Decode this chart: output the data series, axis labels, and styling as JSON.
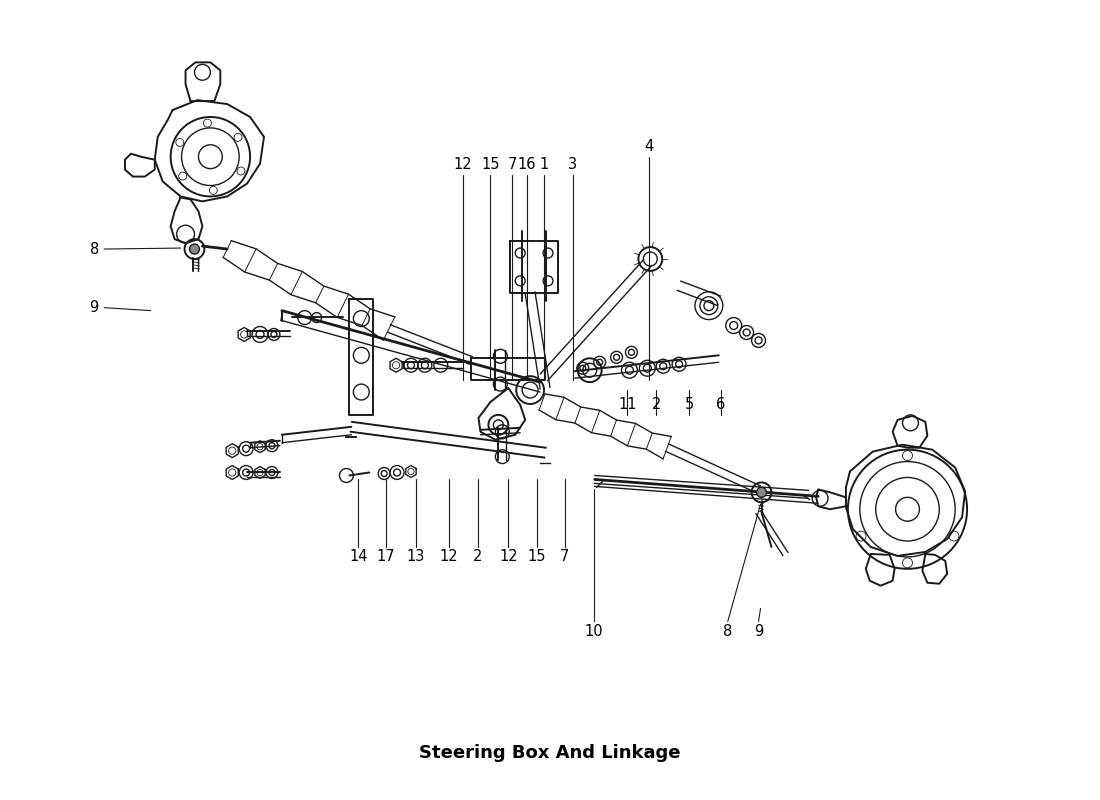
{
  "title": "Steering Box And Linkage",
  "bg_color": "#ffffff",
  "line_color": "#1a1a1a",
  "label_color": "#000000",
  "label_fontsize": 10.5,
  "title_fontsize": 13,
  "upper_labels": [
    [
      "12",
      462,
      163
    ],
    [
      "15",
      490,
      163
    ],
    [
      "7",
      512,
      163
    ],
    [
      "16",
      527,
      163
    ],
    [
      "1",
      544,
      163
    ],
    [
      "3",
      573,
      163
    ],
    [
      "4",
      650,
      145
    ]
  ],
  "right_labels": [
    [
      "11",
      628,
      405
    ],
    [
      "2",
      657,
      405
    ],
    [
      "5",
      690,
      405
    ],
    [
      "6",
      722,
      405
    ]
  ],
  "left_labels": [
    [
      "8",
      91,
      248
    ],
    [
      "9",
      91,
      307
    ]
  ],
  "lower_labels": [
    [
      "14",
      357,
      558
    ],
    [
      "17",
      385,
      558
    ],
    [
      "13",
      415,
      558
    ],
    [
      "12",
      448,
      558
    ],
    [
      "2",
      477,
      558
    ],
    [
      "12",
      508,
      558
    ],
    [
      "15",
      537,
      558
    ],
    [
      "7",
      565,
      558
    ]
  ],
  "bottom_labels": [
    [
      "10",
      594,
      633
    ],
    [
      "8",
      729,
      633
    ],
    [
      "9",
      760,
      633
    ]
  ]
}
